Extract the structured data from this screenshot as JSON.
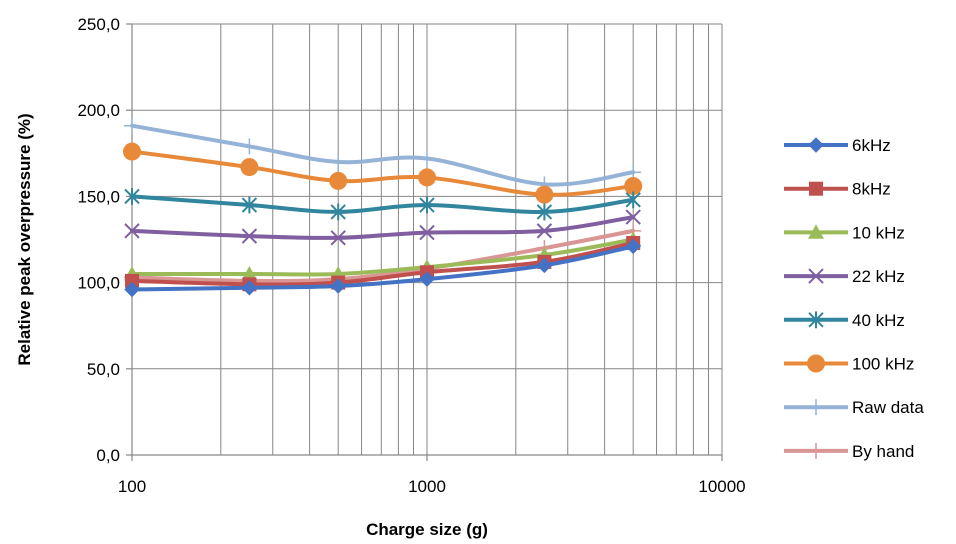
{
  "chart_data": {
    "type": "line",
    "title": "",
    "xlabel": "Charge size (g)",
    "ylabel": "Relative peak overpressure (%)",
    "x_scale": "log",
    "xlim": [
      100,
      10000
    ],
    "ylim": [
      0,
      250
    ],
    "x_ticks": [
      100,
      1000,
      10000
    ],
    "x_tick_labels": [
      "100",
      "1000",
      "10000"
    ],
    "y_ticks": [
      0,
      50,
      100,
      150,
      200,
      250
    ],
    "y_tick_labels": [
      "0,0",
      "50,0",
      "100,0",
      "150,0",
      "200,0",
      "250,0"
    ],
    "grid": true,
    "legend_position": "right",
    "x": [
      100,
      250,
      500,
      1000,
      2500,
      5000
    ],
    "series": [
      {
        "name": "6kHz",
        "color": "#4472C4",
        "marker": "diamond",
        "values": [
          96,
          97,
          98,
          102,
          110,
          121
        ]
      },
      {
        "name": "8kHz",
        "color": "#C0504D",
        "marker": "square",
        "values": [
          101,
          99,
          100,
          106,
          112,
          123
        ]
      },
      {
        "name": "10 kHz",
        "color": "#9BBB59",
        "marker": "triangle",
        "values": [
          105,
          105,
          105,
          109,
          116,
          125
        ]
      },
      {
        "name": "22 kHz",
        "color": "#7F5F9F",
        "marker": "x",
        "values": [
          130,
          127,
          126,
          129,
          130,
          138
        ]
      },
      {
        "name": "40 kHz",
        "color": "#31859C",
        "marker": "star",
        "values": [
          150,
          145,
          141,
          145,
          141,
          148
        ]
      },
      {
        "name": "100 kHz",
        "color": "#E8893A",
        "marker": "circle",
        "values": [
          176,
          167,
          159,
          161,
          151,
          156
        ]
      },
      {
        "name": "Raw data",
        "color": "#95B3D7",
        "marker": "plus",
        "values": [
          191,
          179,
          170,
          172,
          157,
          164
        ]
      },
      {
        "name": "By hand",
        "color": "#D99694",
        "marker": "plus",
        "values": [
          103,
          101,
          102,
          108,
          120,
          130
        ]
      }
    ]
  }
}
